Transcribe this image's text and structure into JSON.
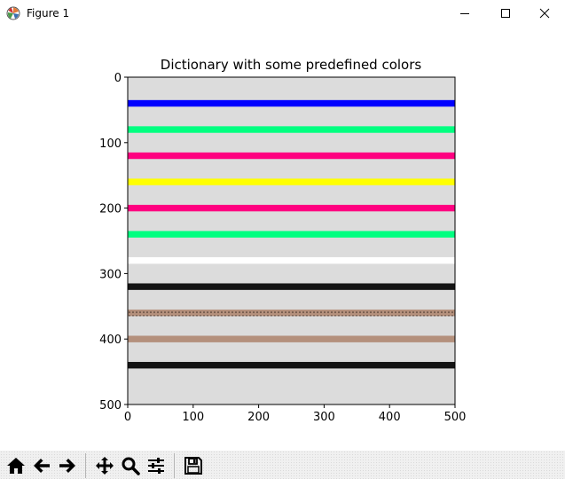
{
  "window": {
    "title": "Figure 1",
    "icons": [
      "matplotlib-icon",
      "minimize-icon",
      "maximize-icon",
      "close-icon"
    ]
  },
  "toolbar": {
    "buttons": [
      {
        "name": "home-button",
        "icon": "home-icon"
      },
      {
        "name": "back-button",
        "icon": "arrow-left-icon"
      },
      {
        "name": "forward-button",
        "icon": "arrow-right-icon"
      },
      {
        "name": "pan-button",
        "icon": "move-icon"
      },
      {
        "name": "zoom-button",
        "icon": "magnifier-icon"
      },
      {
        "name": "subplots-button",
        "icon": "sliders-icon"
      },
      {
        "name": "save-button",
        "icon": "floppy-disk-icon"
      }
    ]
  },
  "chart_data": {
    "type": "image",
    "title": "Dictionary with some predefined colors",
    "xlabel": "",
    "ylabel": "",
    "xlim": [
      0,
      500
    ],
    "ylim": [
      500,
      0
    ],
    "xticks": [
      0,
      100,
      200,
      300,
      400,
      500
    ],
    "yticks": [
      0,
      100,
      200,
      300,
      400,
      500
    ],
    "background_color": "#dcdcdc",
    "stripes": [
      {
        "y": 40,
        "color": "#0000ff"
      },
      {
        "y": 80,
        "color": "#00ff80"
      },
      {
        "y": 120,
        "color": "#ff0080"
      },
      {
        "y": 160,
        "color": "#ffff00"
      },
      {
        "y": 200,
        "color": "#ff0080"
      },
      {
        "y": 240,
        "color": "#00ff80"
      },
      {
        "y": 280,
        "color": "#ffffff"
      },
      {
        "y": 320,
        "color": "#141414"
      },
      {
        "y": 360,
        "color": "#b4907c",
        "dotted": true
      },
      {
        "y": 400,
        "color": "#b4907c"
      },
      {
        "y": 440,
        "color": "#141414"
      }
    ]
  }
}
